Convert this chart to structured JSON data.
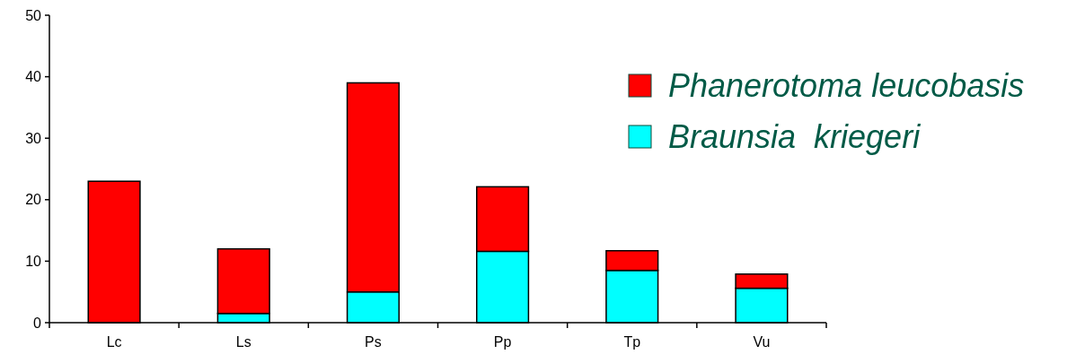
{
  "chart_data": {
    "type": "bar",
    "stacked": true,
    "categories": [
      "Lc",
      "Ls",
      "Ps",
      "Pp",
      "Tp",
      "Vu"
    ],
    "series": [
      {
        "name": "Braunsia  kriegeri",
        "color": "#00ffff",
        "values": [
          0,
          1.5,
          5,
          11.6,
          8.5,
          5.6
        ]
      },
      {
        "name": "Phanerotoma leucobasis",
        "color": "#ff0000",
        "values": [
          23,
          10.5,
          34,
          10.5,
          3.2,
          2.3
        ]
      }
    ],
    "ylim": [
      0,
      50
    ],
    "yticks": [
      0,
      10,
      20,
      30,
      40,
      50
    ],
    "grid": false,
    "legend": "right"
  }
}
